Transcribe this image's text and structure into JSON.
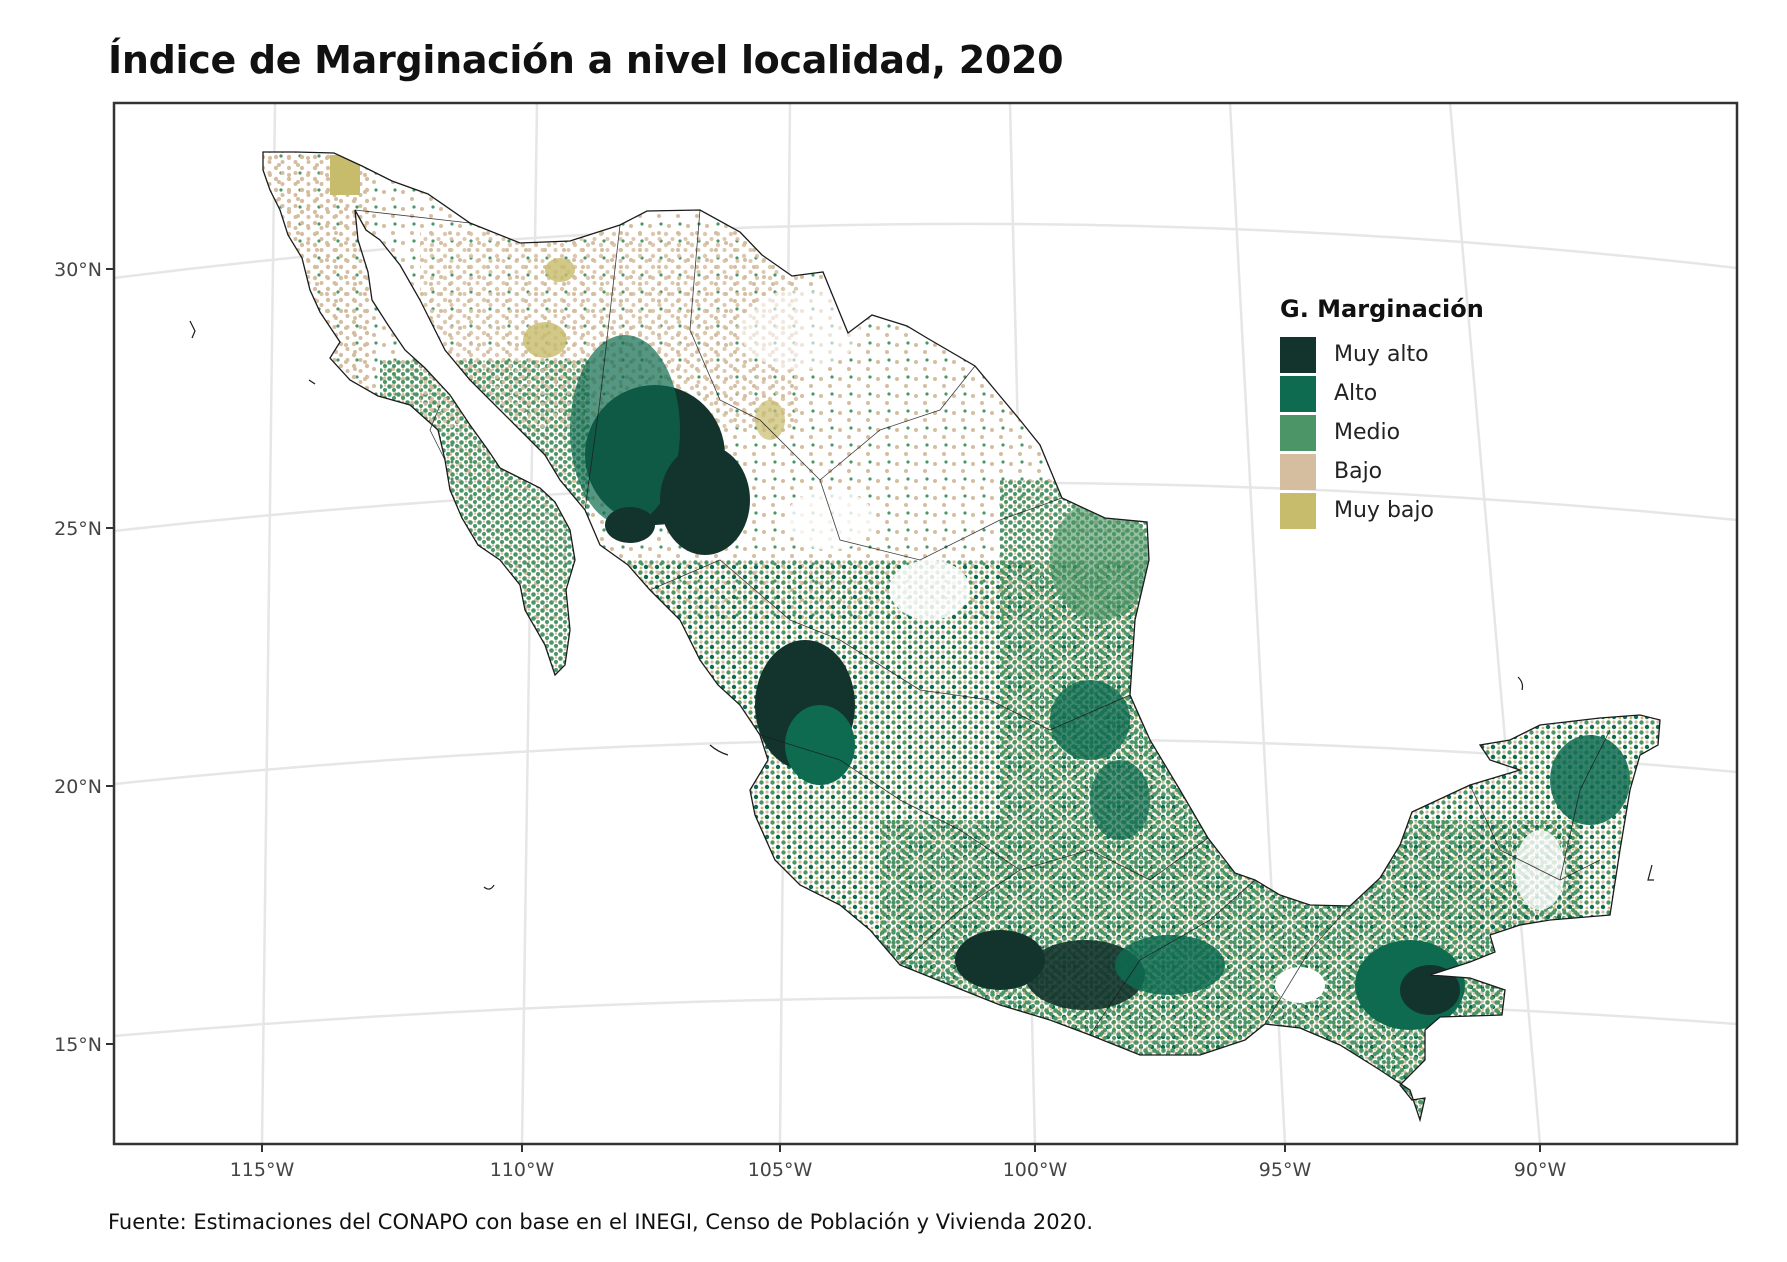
{
  "title": "Índice de Marginación a nivel localidad, 2020",
  "source": "Fuente: Estimaciones del CONAPO con base en el INEGI, Censo de Población y Vivienda 2020.",
  "legend": {
    "title": "G. Marginación",
    "items": [
      {
        "label": "Muy alto",
        "color": "#13342c"
      },
      {
        "label": "Alto",
        "color": "#0e6b50"
      },
      {
        "label": "Medio",
        "color": "#4b9566"
      },
      {
        "label": "Bajo",
        "color": "#d5bea0"
      },
      {
        "label": "Muy bajo",
        "color": "#c7bc6c"
      }
    ]
  },
  "axes": {
    "lat_labels": [
      "30°N",
      "25°N",
      "20°N",
      "15°N"
    ],
    "lon_labels": [
      "115°W",
      "110°W",
      "105°W",
      "100°W",
      "95°W",
      "90°W"
    ]
  },
  "map": {
    "region": "México",
    "grid": true,
    "background": "#ffffff",
    "boundary_color": "#1b1b1b"
  }
}
